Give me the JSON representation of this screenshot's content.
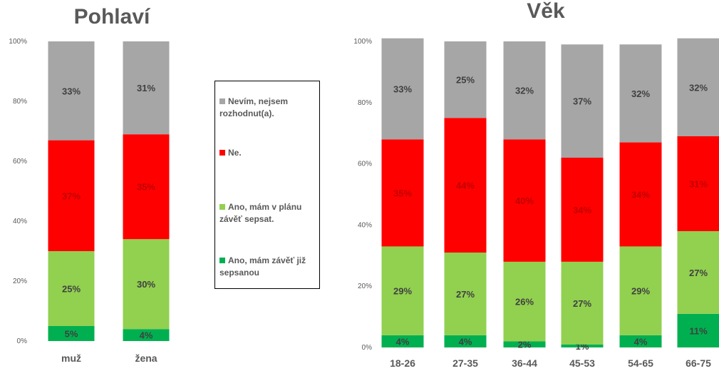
{
  "colors": {
    "nevim": "#a6a6a6",
    "ne": "#ff0000",
    "plan": "#92d050",
    "ma": "#00b050",
    "text": "#595959"
  },
  "legend": [
    {
      "key": "nevim",
      "label": "Nevím, nejsem rozhodnut(a)."
    },
    {
      "key": "ne",
      "label": "Ne."
    },
    {
      "key": "plan",
      "label": "Ano, mám v plánu závěť sepsat."
    },
    {
      "key": "ma",
      "label": "Ano, mám závěť již sepsanou"
    }
  ],
  "chart_data": [
    {
      "type": "bar",
      "stacked": true,
      "title": "Pohlaví",
      "categories": [
        "muž",
        "žena"
      ],
      "y_ticks": [
        "0%",
        "20%",
        "40%",
        "60%",
        "80%",
        "100%"
      ],
      "ylim": [
        0,
        100
      ],
      "series": [
        {
          "key": "ma",
          "values": [
            5,
            4
          ],
          "labels": [
            "5%",
            "4%"
          ]
        },
        {
          "key": "plan",
          "values": [
            25,
            30
          ],
          "labels": [
            "25%",
            "30%"
          ]
        },
        {
          "key": "ne",
          "values": [
            37,
            35
          ],
          "labels": [
            "37%",
            "35%"
          ]
        },
        {
          "key": "nevim",
          "values": [
            33,
            31
          ],
          "labels": [
            "33%",
            "31%"
          ]
        }
      ]
    },
    {
      "type": "bar",
      "stacked": true,
      "title": "Věk",
      "categories": [
        "18-26",
        "27-35",
        "36-44",
        "45-53",
        "54-65",
        "66-75"
      ],
      "y_ticks": [
        "0%",
        "20%",
        "40%",
        "60%",
        "80%",
        "100%"
      ],
      "ylim": [
        0,
        100
      ],
      "series": [
        {
          "key": "ma",
          "values": [
            4,
            4,
            2,
            1,
            4,
            11
          ],
          "labels": [
            "4%",
            "4%",
            "2%",
            "1%",
            "4%",
            "11%"
          ]
        },
        {
          "key": "plan",
          "values": [
            29,
            27,
            26,
            27,
            29,
            27
          ],
          "labels": [
            "29%",
            "27%",
            "26%",
            "27%",
            "29%",
            "27%"
          ]
        },
        {
          "key": "ne",
          "values": [
            35,
            44,
            40,
            34,
            34,
            31
          ],
          "labels": [
            "35%",
            "44%",
            "40%",
            "34%",
            "34%",
            "31%"
          ]
        },
        {
          "key": "nevim",
          "values": [
            33,
            25,
            32,
            37,
            32,
            32
          ],
          "labels": [
            "33%",
            "25%",
            "32%",
            "37%",
            "32%",
            "32%"
          ]
        }
      ]
    }
  ]
}
